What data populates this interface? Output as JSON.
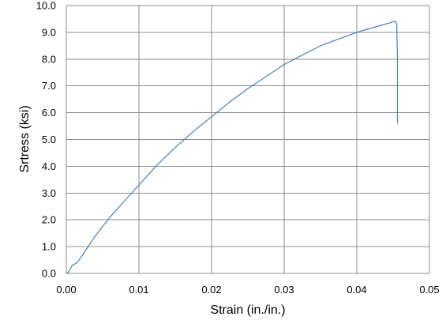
{
  "chart_data": {
    "type": "line",
    "title": "",
    "xlabel": "Strain (in./in.)",
    "ylabel": "Srtress (ksi)",
    "xlim": [
      0,
      0.05
    ],
    "ylim": [
      0,
      10
    ],
    "x_ticks": [
      0,
      0.01,
      0.02,
      0.03,
      0.04,
      0.05
    ],
    "x_tick_labels": [
      "0.00",
      "0.01",
      "0.02",
      "0.03",
      "0.04",
      "0.05"
    ],
    "y_ticks": [
      0,
      1,
      2,
      3,
      4,
      5,
      6,
      7,
      8,
      9,
      10
    ],
    "y_tick_labels": [
      "0.0",
      "1.0",
      "2.0",
      "3.0",
      "4.0",
      "5.0",
      "6.0",
      "7.0",
      "8.0",
      "9.0",
      "10.0"
    ],
    "grid": true,
    "legend": "none",
    "series": [
      {
        "color": "#4a7fb5",
        "points": [
          [
            0.0,
            0.0
          ],
          [
            0.0003,
            0.05
          ],
          [
            0.0008,
            0.3
          ],
          [
            0.0015,
            0.4
          ],
          [
            0.0025,
            0.8
          ],
          [
            0.004,
            1.4
          ],
          [
            0.006,
            2.1
          ],
          [
            0.008,
            2.7
          ],
          [
            0.01,
            3.3
          ],
          [
            0.0125,
            4.05
          ],
          [
            0.015,
            4.7
          ],
          [
            0.0175,
            5.3
          ],
          [
            0.02,
            5.85
          ],
          [
            0.0225,
            6.4
          ],
          [
            0.025,
            6.9
          ],
          [
            0.0275,
            7.35
          ],
          [
            0.03,
            7.8
          ],
          [
            0.0325,
            8.15
          ],
          [
            0.035,
            8.5
          ],
          [
            0.0375,
            8.75
          ],
          [
            0.04,
            9.0
          ],
          [
            0.0425,
            9.2
          ],
          [
            0.0445,
            9.35
          ],
          [
            0.0453,
            9.42
          ],
          [
            0.0455,
            9.3
          ],
          [
            0.0456,
            8.0
          ],
          [
            0.0456,
            5.6
          ]
        ]
      }
    ]
  }
}
